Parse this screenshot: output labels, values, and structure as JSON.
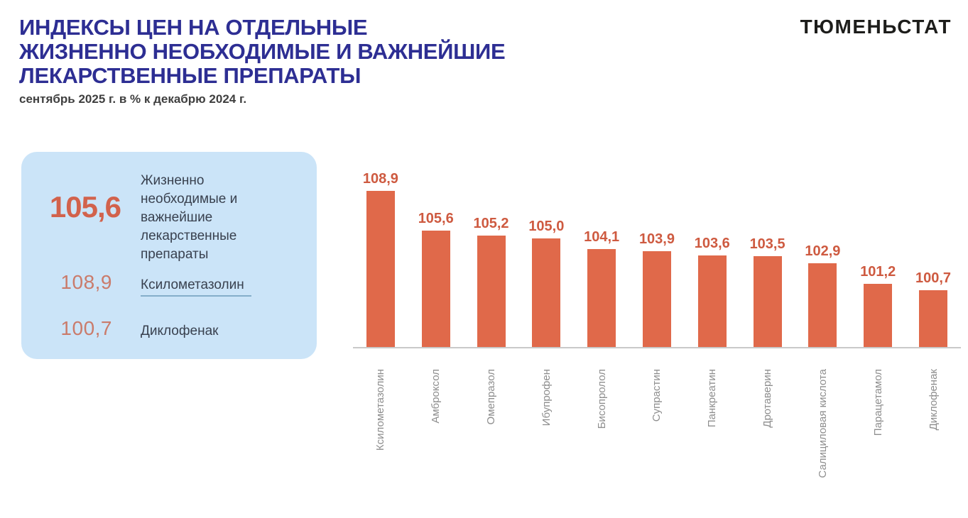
{
  "header": {
    "title_lines": [
      "ИНДЕКСЫ ЦЕН НА ОТДЕЛЬНЫЕ",
      "ЖИЗНЕННО НЕОБХОДИМЫЕ И ВАЖНЕЙШИЕ",
      "ЛЕКАРСТВЕННЫЕ ПРЕПАРАТЫ"
    ],
    "subtitle": "сентябрь 2025 г. в % к декабрю 2024 г.",
    "logo": "ТЮМЕНЬСТАТ"
  },
  "summary_panel": {
    "main_value": "105,6",
    "main_label": "Жизненно необходимые и важнейшие лекарственные препараты",
    "highlights": [
      {
        "value": "108,9",
        "label": "Ксилометазолин"
      },
      {
        "value": "100,7",
        "label": "Диклофенак"
      }
    ]
  },
  "colors": {
    "title": "#2d2e93",
    "panel_background": "#cbe4f8",
    "panel_main_value": "#d2624c",
    "panel_highlight_value": "#ca7b6b",
    "underline": "#84aeca",
    "bar": "#e0694a",
    "bar_value_label": "#ce5a40",
    "axis_line": "#c9c9c9",
    "axis_label": "#8e8e8e"
  },
  "chart_data": {
    "type": "bar",
    "title": "Индексы цен на отдельные жизненно необходимые и важнейшие лекарственные препараты",
    "subtitle": "сентябрь 2025 г. в % к декабрю 2024 г.",
    "categories": [
      "Ксилометазолин",
      "Амброксол",
      "Омепразол",
      "Ибупрофен",
      "Бисопролол",
      "Супрастин",
      "Панкреатин",
      "Дротаверин",
      "Салициловая кислота",
      "Парацетамол",
      "Диклофенак"
    ],
    "values": [
      108.9,
      105.6,
      105.2,
      105.0,
      104.1,
      103.9,
      103.6,
      103.5,
      102.9,
      101.2,
      100.7
    ],
    "value_labels": [
      "108,9",
      "105,6",
      "105,2",
      "105,0",
      "104,1",
      "103,9",
      "103,6",
      "103,5",
      "102,9",
      "101,2",
      "100,7"
    ],
    "xlabel": "",
    "ylabel": "",
    "ylim": [
      96,
      109.5
    ],
    "grid": false,
    "legend": "none",
    "bar_color": "#e0694a"
  }
}
